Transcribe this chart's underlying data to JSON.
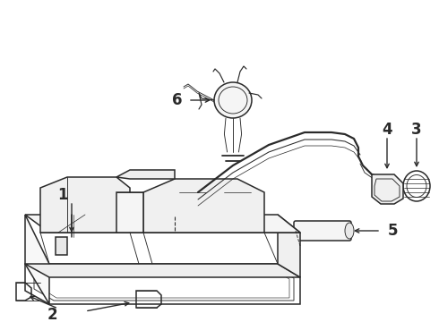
{
  "bg_color": "#ffffff",
  "lc": "#2a2a2a",
  "lc_thin": "#444444",
  "label_fs": 11,
  "figsize": [
    4.9,
    3.6
  ],
  "dpi": 100
}
